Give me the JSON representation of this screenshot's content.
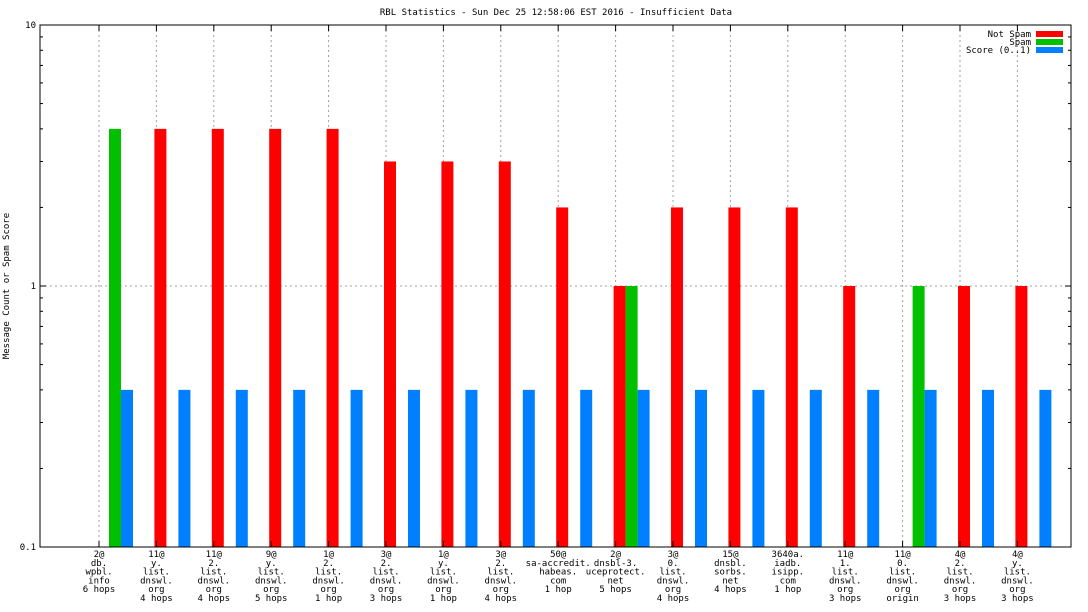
{
  "chart_data": {
    "type": "bar",
    "title": "RBL Statistics - Sun Dec 25 12:58:06 EST 2016 - Insufficient Data",
    "ylabel": "Message Count or Spam Score",
    "xlabel": "",
    "yscale": "log",
    "ylim": [
      0.1,
      10
    ],
    "yticks": [
      "0.1",
      "1",
      "10"
    ],
    "grid": true,
    "legend_position": "top-right",
    "categories": [
      [
        "2@",
        "db.",
        "wpbl.",
        "info",
        "6 hops"
      ],
      [
        "11@",
        "y.",
        "list.",
        "dnswl.",
        "org",
        "4 hops"
      ],
      [
        "11@",
        "2.",
        "list.",
        "dnswl.",
        "org",
        "4 hops"
      ],
      [
        "9@",
        "y.",
        "list.",
        "dnswl.",
        "org",
        "5 hops"
      ],
      [
        "1@",
        "2.",
        "list.",
        "dnswl.",
        "org",
        "1 hop"
      ],
      [
        "3@",
        "2.",
        "list.",
        "dnswl.",
        "org",
        "3 hops"
      ],
      [
        "1@",
        "y.",
        "list.",
        "dnswl.",
        "org",
        "1 hop"
      ],
      [
        "3@",
        "2.",
        "list.",
        "dnswl.",
        "org",
        "4 hops"
      ],
      [
        "50@",
        "sa-accredit.",
        "habeas.",
        "com",
        "1 hop"
      ],
      [
        "2@",
        "dnsbl-3.",
        "uceprotect.",
        "net",
        "5 hops"
      ],
      [
        "3@",
        "0.",
        "list.",
        "dnswl.",
        "org",
        "4 hops"
      ],
      [
        "15@",
        "dnsbl.",
        "sorbs.",
        "net",
        "4 hops"
      ],
      [
        "3640a.",
        "iadb.",
        "isipp.",
        "com",
        "1 hop"
      ],
      [
        "11@",
        "1.",
        "list.",
        "dnswl.",
        "org",
        "3 hops"
      ],
      [
        "11@",
        "0.",
        "list.",
        "dnswl.",
        "org",
        "origin"
      ],
      [
        "4@",
        "2.",
        "list.",
        "dnswl.",
        "org",
        "3 hops"
      ],
      [
        "4@",
        "y.",
        "list.",
        "dnswl.",
        "org",
        "3 hops"
      ]
    ],
    "series": [
      {
        "name": "Not Spam",
        "color": "#ff0000",
        "values": [
          0,
          4,
          4,
          4,
          4,
          3,
          3,
          3,
          2,
          1,
          2,
          2,
          2,
          1,
          0,
          1,
          1
        ]
      },
      {
        "name": "Spam",
        "color": "#00c000",
        "values": [
          4,
          0,
          0,
          0,
          0,
          0,
          0,
          0,
          0,
          1,
          0,
          0,
          0,
          0,
          1,
          0,
          0
        ]
      },
      {
        "name": "Score (0..1)",
        "color": "#0080ff",
        "values": [
          0.4,
          0.4,
          0.4,
          0.4,
          0.4,
          0.4,
          0.4,
          0.4,
          0.4,
          0.4,
          0.4,
          0.4,
          0.4,
          0.4,
          0.4,
          0.4,
          0.4
        ]
      }
    ]
  }
}
